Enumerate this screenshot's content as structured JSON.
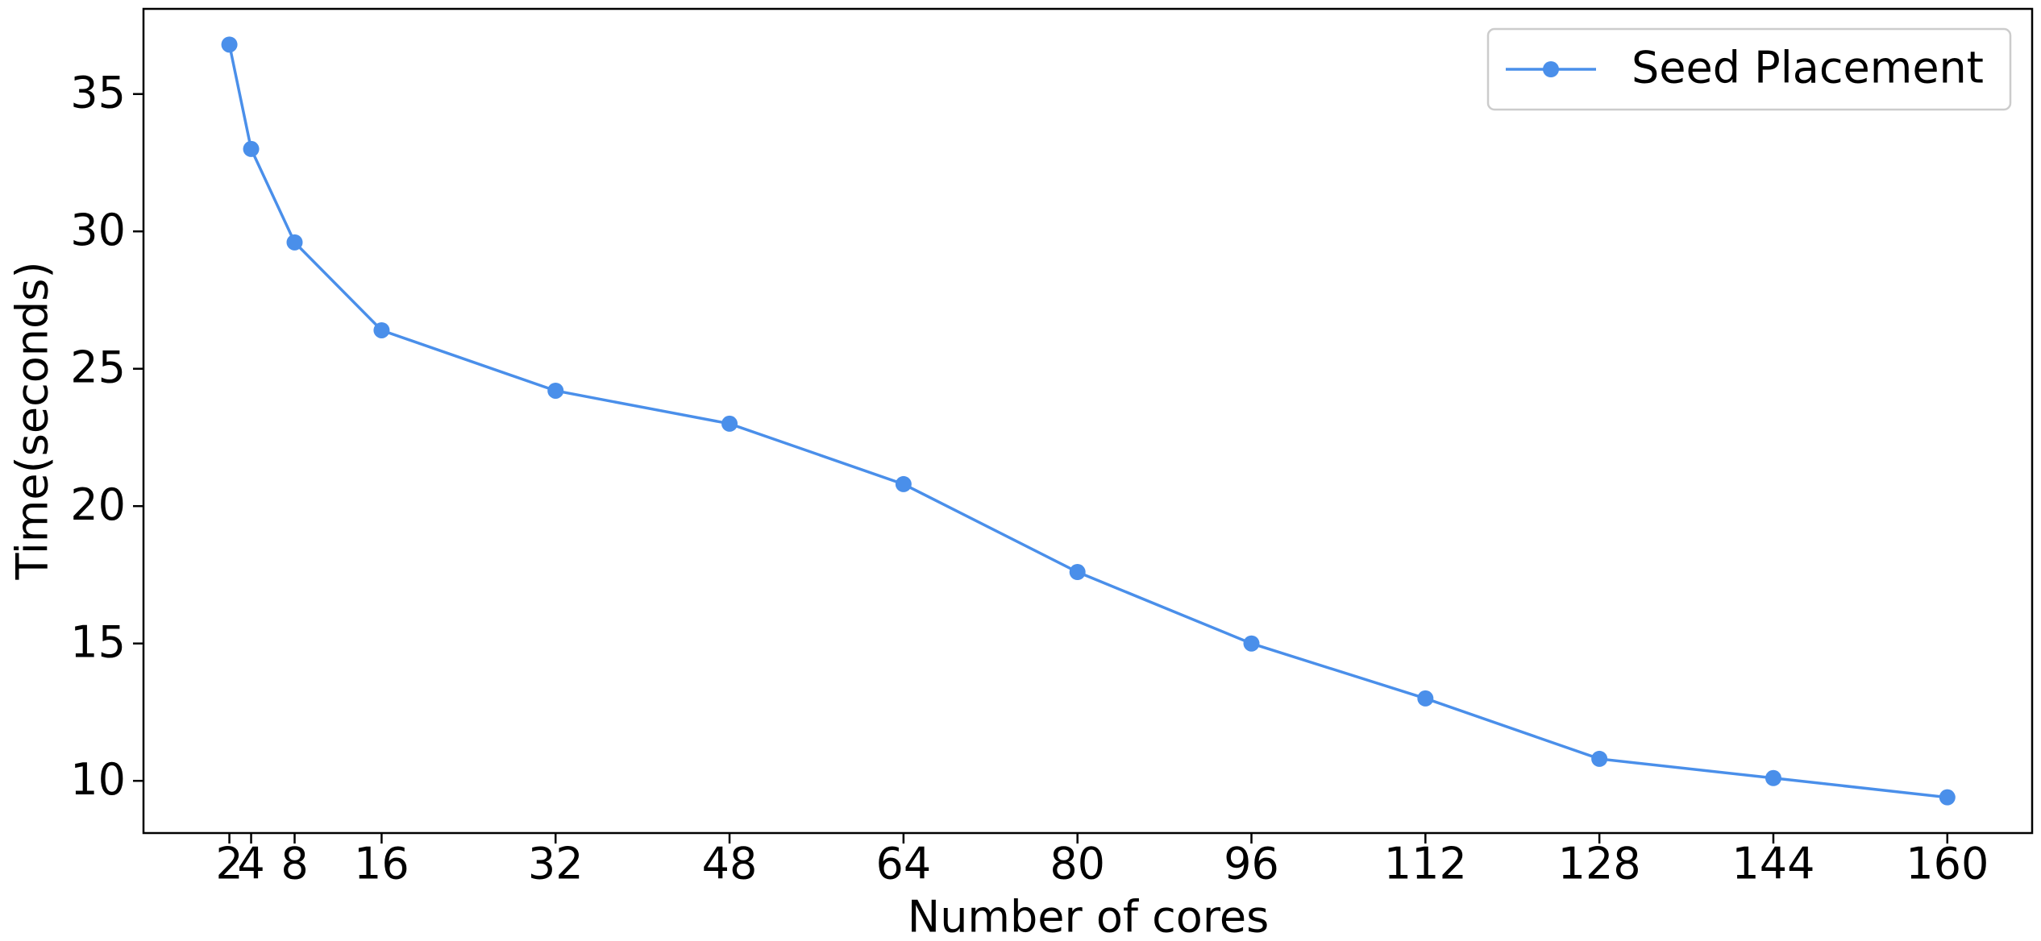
{
  "chart_data": {
    "type": "line",
    "xlabel": "Number of cores",
    "ylabel": "Time(seconds)",
    "x": [
      2,
      4,
      8,
      16,
      32,
      48,
      64,
      80,
      96,
      112,
      128,
      144,
      160
    ],
    "series": [
      {
        "name": "Seed Placement",
        "color": "#4a8fea",
        "values": [
          36.8,
          33.0,
          29.6,
          26.4,
          24.2,
          23.0,
          20.8,
          17.6,
          15.0,
          13.0,
          10.8,
          10.1,
          9.4
        ]
      }
    ],
    "xlim": [
      -5.9,
      167.8
    ],
    "xticks": [
      2,
      4,
      8,
      16,
      32,
      48,
      64,
      80,
      96,
      112,
      128,
      144,
      160
    ],
    "ylim": [
      8.1,
      38.1
    ],
    "yticks": [
      10,
      15,
      20,
      25,
      30,
      35
    ],
    "legend": "upper right",
    "grid": false
  }
}
